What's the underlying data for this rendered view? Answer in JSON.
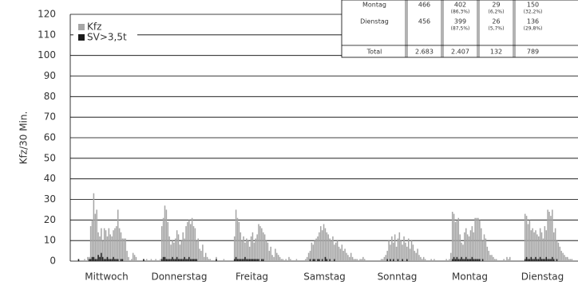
{
  "chart_data": {
    "type": "bar",
    "ylabel": "Kfz/30 Min.",
    "categories": [
      "Mittwoch",
      "Donnerstag",
      "Freitag",
      "Samstag",
      "Sonntag",
      "Montag",
      "Dienstag"
    ],
    "ylim": [
      0,
      120
    ],
    "yticks": [
      0,
      10,
      20,
      30,
      40,
      50,
      60,
      70,
      80,
      90,
      100,
      110,
      120
    ],
    "grid": true,
    "series": [
      {
        "name": "Kfz",
        "color": "#a6a6a6",
        "values": [
          [
            0,
            0,
            0,
            0,
            0,
            1,
            0,
            0,
            0,
            1,
            0,
            2,
            2,
            17,
            20,
            33,
            23,
            25,
            14,
            12,
            16,
            10,
            16,
            15,
            12,
            16,
            13,
            12,
            15,
            16,
            17,
            25,
            16,
            14,
            11,
            11,
            11,
            5,
            2,
            0,
            1,
            4,
            3,
            2,
            0,
            0,
            0,
            0
          ],
          [
            1,
            0,
            1,
            0,
            0,
            1,
            0,
            0,
            1,
            0,
            0,
            1,
            17,
            21,
            27,
            25,
            19,
            12,
            8,
            10,
            9,
            11,
            15,
            13,
            8,
            10,
            14,
            11,
            17,
            19,
            20,
            18,
            21,
            17,
            16,
            10,
            11,
            6,
            5,
            8,
            2,
            4,
            2,
            1,
            1,
            0,
            0,
            0
          ],
          [
            2,
            0,
            0,
            0,
            0,
            1,
            0,
            0,
            0,
            0,
            0,
            0,
            12,
            25,
            21,
            19,
            14,
            10,
            12,
            9,
            11,
            10,
            7,
            12,
            14,
            9,
            11,
            13,
            18,
            17,
            16,
            14,
            13,
            10,
            9,
            5,
            7,
            3,
            2,
            6,
            4,
            3,
            2,
            1,
            1,
            0,
            1,
            0
          ],
          [
            2,
            1,
            0,
            0,
            0,
            1,
            0,
            0,
            0,
            0,
            0,
            1,
            2,
            4,
            5,
            9,
            8,
            10,
            11,
            12,
            14,
            17,
            15,
            18,
            16,
            14,
            13,
            11,
            10,
            12,
            8,
            9,
            10,
            7,
            6,
            8,
            5,
            6,
            4,
            3,
            2,
            4,
            2,
            1,
            1,
            1,
            0,
            1
          ],
          [
            1,
            2,
            1,
            0,
            0,
            0,
            0,
            0,
            0,
            0,
            0,
            0,
            0,
            1,
            1,
            2,
            3,
            5,
            10,
            8,
            12,
            9,
            13,
            7,
            11,
            14,
            10,
            8,
            12,
            9,
            7,
            11,
            6,
            10,
            8,
            5,
            4,
            6,
            3,
            2,
            1,
            2,
            1,
            0,
            0,
            0,
            1,
            0
          ],
          [
            1,
            0,
            0,
            0,
            0,
            0,
            0,
            0,
            1,
            0,
            1,
            4,
            24,
            23,
            19,
            20,
            21,
            13,
            9,
            8,
            14,
            16,
            13,
            12,
            15,
            17,
            14,
            21,
            21,
            21,
            20,
            16,
            10,
            13,
            11,
            7,
            5,
            3,
            3,
            2,
            1,
            1,
            0,
            0,
            0,
            0,
            1,
            0
          ],
          [
            2,
            1,
            2,
            0,
            0,
            0,
            0,
            0,
            0,
            0,
            0,
            0,
            23,
            22,
            18,
            20,
            15,
            16,
            14,
            15,
            13,
            12,
            16,
            14,
            11,
            17,
            15,
            25,
            24,
            22,
            25,
            14,
            16,
            10,
            9,
            7,
            5,
            4,
            3,
            2,
            2,
            1,
            1,
            1,
            0,
            0,
            0,
            0
          ]
        ]
      },
      {
        "name": "SV>3,5t",
        "color": "#1a1a1a",
        "values": [
          [
            0,
            0,
            0,
            0,
            0,
            1,
            0,
            0,
            0,
            0,
            0,
            0,
            1,
            1,
            2,
            2,
            1,
            1,
            3,
            2,
            4,
            2,
            1,
            1,
            2,
            1,
            1,
            1,
            2,
            1,
            1,
            1,
            0,
            1,
            1,
            0,
            0,
            0,
            0,
            0,
            0,
            0,
            0,
            0,
            0,
            0,
            0,
            0
          ],
          [
            1,
            0,
            0,
            0,
            0,
            0,
            0,
            0,
            0,
            0,
            0,
            0,
            1,
            2,
            2,
            1,
            1,
            1,
            1,
            2,
            1,
            1,
            2,
            1,
            1,
            1,
            1,
            2,
            1,
            1,
            2,
            1,
            1,
            1,
            1,
            1,
            0,
            0,
            0,
            0,
            0,
            0,
            0,
            0,
            0,
            0,
            0,
            0
          ],
          [
            1,
            0,
            0,
            0,
            0,
            0,
            0,
            0,
            0,
            0,
            0,
            0,
            1,
            2,
            1,
            1,
            1,
            1,
            1,
            2,
            1,
            1,
            1,
            1,
            1,
            1,
            1,
            1,
            1,
            0,
            1,
            1,
            0,
            0,
            0,
            0,
            0,
            0,
            0,
            0,
            0,
            0,
            0,
            0,
            0,
            0,
            0,
            0
          ],
          [
            0,
            0,
            0,
            0,
            0,
            0,
            0,
            0,
            0,
            0,
            0,
            0,
            0,
            0,
            1,
            0,
            1,
            1,
            0,
            1,
            1,
            0,
            1,
            0,
            2,
            1,
            0,
            1,
            0,
            0,
            1,
            0,
            0,
            0,
            0,
            0,
            0,
            0,
            0,
            0,
            0,
            0,
            0,
            0,
            0,
            0,
            0,
            0
          ],
          [
            0,
            0,
            0,
            0,
            0,
            0,
            0,
            0,
            0,
            0,
            0,
            0,
            0,
            0,
            0,
            0,
            0,
            1,
            0,
            1,
            0,
            1,
            0,
            0,
            1,
            0,
            0,
            1,
            0,
            0,
            1,
            0,
            0,
            0,
            0,
            0,
            0,
            0,
            0,
            0,
            0,
            0,
            0,
            0,
            0,
            0,
            0,
            0
          ],
          [
            0,
            0,
            0,
            0,
            0,
            0,
            0,
            0,
            0,
            0,
            0,
            0,
            1,
            2,
            1,
            2,
            1,
            1,
            2,
            1,
            1,
            2,
            1,
            1,
            1,
            2,
            1,
            1,
            1,
            1,
            1,
            0,
            1,
            0,
            0,
            0,
            0,
            0,
            0,
            0,
            0,
            0,
            0,
            0,
            0,
            0,
            0,
            0
          ],
          [
            0,
            0,
            0,
            0,
            0,
            0,
            0,
            0,
            0,
            0,
            0,
            0,
            1,
            2,
            1,
            1,
            2,
            1,
            1,
            2,
            1,
            1,
            2,
            1,
            1,
            1,
            2,
            1,
            1,
            1,
            2,
            1,
            0,
            1,
            0,
            0,
            0,
            0,
            0,
            0,
            0,
            0,
            0,
            0,
            0,
            0,
            0,
            0
          ]
        ]
      }
    ]
  },
  "table": {
    "rows": [
      [
        "Montag",
        "466",
        [
          "402",
          "(86,3%)"
        ],
        [
          "29",
          "(6,2%)"
        ],
        [
          "150",
          "(32,2%)"
        ]
      ],
      [
        "Dienstag",
        "456",
        [
          "399",
          "(87,5%)"
        ],
        [
          "26",
          "(5,7%)"
        ],
        [
          "136",
          "(29,8%)"
        ]
      ],
      [
        "Total",
        "2.683",
        "2.407",
        "132",
        "789"
      ]
    ]
  }
}
